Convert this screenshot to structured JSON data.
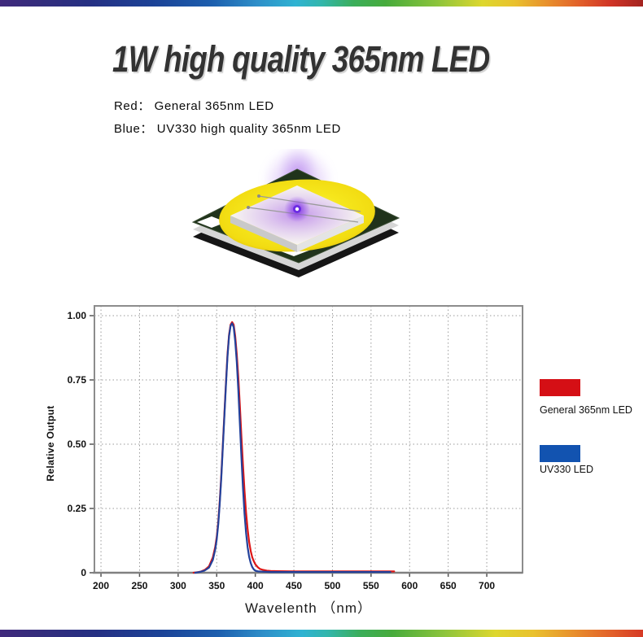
{
  "header": {
    "title": "1W high quality 365nm LED"
  },
  "subtitle": {
    "line1": "Red： General 365nm LED",
    "line2": "Blue： UV330 high quality 365nm LED"
  },
  "colors": {
    "red_series": "#dd1515",
    "blue_series": "#23419b",
    "legend_red": "#d50f15",
    "legend_blue": "#1253b0",
    "title_text": "#333333"
  },
  "legend": {
    "red_label": "General 365nm LED",
    "blue_label": "UV330 LED"
  },
  "chart_data": {
    "type": "line",
    "title": "",
    "xlabel": "Wavelenth （nm）",
    "ylabel": "Relative Output",
    "xlim": [
      191,
      746
    ],
    "ylim": [
      0,
      1.04
    ],
    "grid": "dotted",
    "legend_position": "right-outside",
    "x_ticks": [
      200,
      250,
      300,
      350,
      400,
      450,
      500,
      550,
      600,
      650,
      700
    ],
    "y_ticks": [
      {
        "v": 1.0,
        "label": "1.00"
      },
      {
        "v": 0.75,
        "label": "0.75"
      },
      {
        "v": 0.5,
        "label": "0.50"
      },
      {
        "v": 0.25,
        "label": "0.25"
      },
      {
        "v": 0,
        "label": "0"
      }
    ],
    "series": [
      {
        "name": "General 365nm LED",
        "color": "#dd1515",
        "points": [
          [
            320,
            0
          ],
          [
            325,
            0.002
          ],
          [
            330,
            0.005
          ],
          [
            335,
            0.012
          ],
          [
            340,
            0.025
          ],
          [
            345,
            0.06
          ],
          [
            348,
            0.1
          ],
          [
            350,
            0.14
          ],
          [
            352,
            0.2
          ],
          [
            354,
            0.28
          ],
          [
            356,
            0.38
          ],
          [
            358,
            0.5
          ],
          [
            360,
            0.62
          ],
          [
            362,
            0.74
          ],
          [
            364,
            0.85
          ],
          [
            366,
            0.925
          ],
          [
            368,
            0.965
          ],
          [
            370,
            0.975
          ],
          [
            372,
            0.965
          ],
          [
            374,
            0.92
          ],
          [
            376,
            0.85
          ],
          [
            378,
            0.76
          ],
          [
            380,
            0.65
          ],
          [
            382,
            0.53
          ],
          [
            384,
            0.42
          ],
          [
            386,
            0.32
          ],
          [
            388,
            0.235
          ],
          [
            390,
            0.17
          ],
          [
            392,
            0.12
          ],
          [
            394,
            0.085
          ],
          [
            396,
            0.06
          ],
          [
            398,
            0.045
          ],
          [
            400,
            0.033
          ],
          [
            403,
            0.022
          ],
          [
            406,
            0.015
          ],
          [
            410,
            0.011
          ],
          [
            415,
            0.008
          ],
          [
            420,
            0.007
          ],
          [
            430,
            0.006
          ],
          [
            450,
            0.005
          ],
          [
            480,
            0.005
          ],
          [
            520,
            0.005
          ],
          [
            560,
            0.005
          ],
          [
            580,
            0.005
          ]
        ]
      },
      {
        "name": "UV330 LED",
        "color": "#23419b",
        "points": [
          [
            322,
            0
          ],
          [
            328,
            0.003
          ],
          [
            334,
            0.008
          ],
          [
            340,
            0.02
          ],
          [
            345,
            0.05
          ],
          [
            348,
            0.09
          ],
          [
            350,
            0.13
          ],
          [
            352,
            0.19
          ],
          [
            354,
            0.27
          ],
          [
            356,
            0.37
          ],
          [
            358,
            0.49
          ],
          [
            360,
            0.61
          ],
          [
            362,
            0.73
          ],
          [
            364,
            0.84
          ],
          [
            366,
            0.92
          ],
          [
            368,
            0.96
          ],
          [
            370,
            0.97
          ],
          [
            372,
            0.955
          ],
          [
            374,
            0.9
          ],
          [
            376,
            0.82
          ],
          [
            378,
            0.71
          ],
          [
            380,
            0.58
          ],
          [
            382,
            0.45
          ],
          [
            384,
            0.33
          ],
          [
            386,
            0.23
          ],
          [
            388,
            0.155
          ],
          [
            390,
            0.1
          ],
          [
            392,
            0.062
          ],
          [
            394,
            0.038
          ],
          [
            396,
            0.022
          ],
          [
            398,
            0.013
          ],
          [
            400,
            0.008
          ],
          [
            404,
            0.005
          ],
          [
            410,
            0.004
          ],
          [
            420,
            0.003
          ],
          [
            450,
            0.003
          ],
          [
            500,
            0.003
          ],
          [
            550,
            0.003
          ],
          [
            575,
            0.003
          ]
        ]
      }
    ]
  }
}
